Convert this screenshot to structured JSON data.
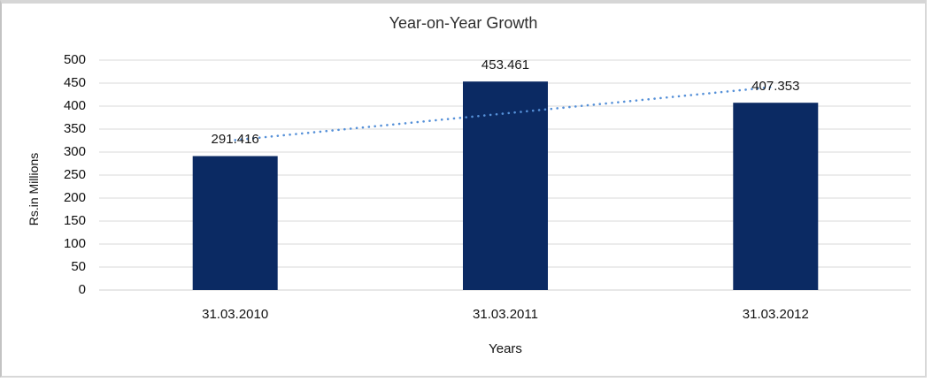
{
  "page": {
    "background": "#ffffff",
    "frame_color": "#d6d6d6"
  },
  "chart_data": {
    "type": "bar",
    "title": "Year-on-Year Growth",
    "categories": [
      "31.03.2010",
      "31.03.2011",
      "31.03.2012"
    ],
    "values": [
      291.416,
      453.461,
      407.353
    ],
    "data_labels": [
      "291.416",
      "453.461",
      "407.353"
    ],
    "xlabel": "Years",
    "ylabel": "Rs.in Millions",
    "ylim": [
      0,
      500
    ],
    "ytick_step": 50,
    "yticks": [
      0,
      50,
      100,
      150,
      200,
      250,
      300,
      350,
      400,
      450,
      500
    ],
    "grid": true,
    "legend": false,
    "bar_color": "#0B2A63",
    "gridline_color": "#d9d9d9",
    "zero_line_color": "#cfcfcf",
    "trendline": {
      "type": "linear",
      "style": "dotted",
      "color": "#5590D8"
    }
  }
}
